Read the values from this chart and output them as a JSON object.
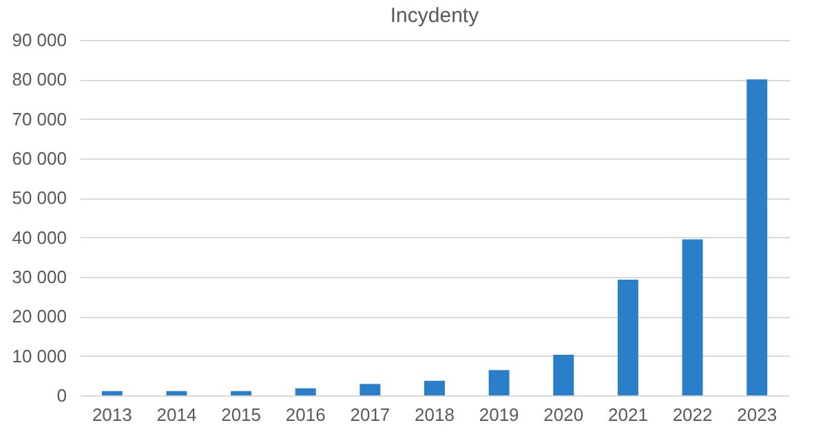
{
  "chart_data": {
    "type": "bar",
    "title": "Incydenty",
    "categories": [
      "2013",
      "2014",
      "2015",
      "2016",
      "2017",
      "2018",
      "2019",
      "2020",
      "2021",
      "2022",
      "2023"
    ],
    "values": [
      1100,
      1100,
      1100,
      1800,
      2900,
      3700,
      6400,
      10300,
      29300,
      39500,
      80000
    ],
    "color": "#2a7fc8",
    "ylim": [
      0,
      90000
    ],
    "yticks": [
      0,
      {
        "value": 10000,
        "label": "10 000"
      },
      {
        "value": 20000,
        "label": "20 000"
      },
      {
        "value": 30000,
        "label": "30 000"
      },
      {
        "value": 40000,
        "label": "40 000"
      },
      {
        "value": 50000,
        "label": "50 000"
      },
      {
        "value": 60000,
        "label": "60 000"
      },
      {
        "value": 70000,
        "label": "70 000"
      },
      {
        "value": 80000,
        "label": "80 000"
      },
      {
        "value": 90000,
        "label": "90 000"
      }
    ],
    "grid": "y"
  }
}
